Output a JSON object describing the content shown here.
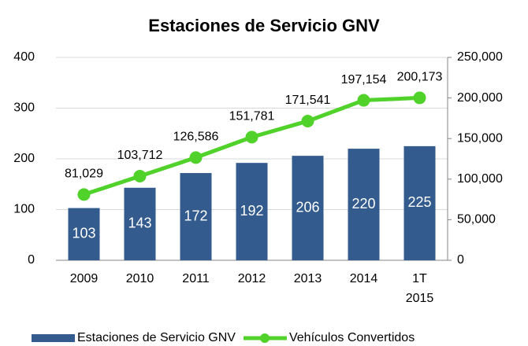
{
  "chart_data": {
    "type": "bar_line",
    "title": "Estaciones de Servicio GNV",
    "categories": [
      "2009",
      "2010",
      "2011",
      "2012",
      "2013",
      "2014",
      "1T 2015"
    ],
    "series": [
      {
        "name": "Estaciones de Servicio GNV",
        "color": "#335b8e",
        "type": "bar",
        "values": [
          103,
          143,
          172,
          192,
          206,
          220,
          225
        ]
      },
      {
        "name": "Vehículos Convertidos",
        "color": "#50d22a",
        "type": "line",
        "axis": "y2",
        "values": [
          81029,
          103712,
          126586,
          151781,
          171541,
          197154,
          200173
        ],
        "value_labels": [
          "81,029",
          "103,712",
          "126,586",
          "151,781",
          "171,541",
          "197,154",
          "200,173"
        ]
      }
    ],
    "ylim": [
      0,
      400
    ],
    "yticks": [
      0,
      100,
      200,
      300,
      400
    ],
    "y2lim": [
      0,
      250000
    ],
    "y2ticks": [
      0,
      {
        "value": 50000,
        "label": "50,000"
      },
      {
        "value": 100000,
        "label": "100,000"
      },
      {
        "value": 150000,
        "label": "150,000"
      },
      {
        "value": 200000,
        "label": "200,000"
      },
      {
        "value": 250000,
        "label": "250,000"
      }
    ],
    "grid": true,
    "legend": "bottom"
  }
}
